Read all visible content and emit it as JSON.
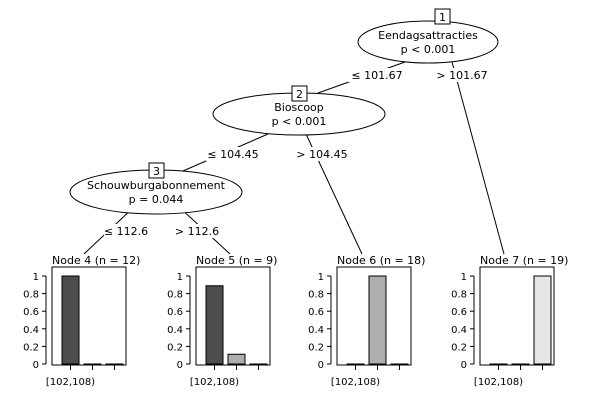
{
  "inner_nodes": [
    {
      "id": "1",
      "variable": "Eendagsattracties",
      "pvalue": "p < 0.001"
    },
    {
      "id": "2",
      "variable": "Bioscoop",
      "pvalue": "p < 0.001"
    },
    {
      "id": "3",
      "variable": "Schouwburgabonnement",
      "pvalue": "p = 0.044"
    }
  ],
  "edges": [
    {
      "from": "1",
      "to": "2",
      "label": "≤ 101.67"
    },
    {
      "from": "1",
      "to": "7",
      "label": "> 101.67"
    },
    {
      "from": "2",
      "to": "3",
      "label": "≤ 104.45"
    },
    {
      "from": "2",
      "to": "6",
      "label": "> 104.45"
    },
    {
      "from": "3",
      "to": "4",
      "label": "≤ 112.6"
    },
    {
      "from": "3",
      "to": "5",
      "label": "> 112.6"
    }
  ],
  "terminal_nodes": [
    {
      "id": "4",
      "title": "Node 4 (n = 12)",
      "values": [
        1.0,
        0.0,
        0.0
      ]
    },
    {
      "id": "5",
      "title": "Node 5 (n = 9)",
      "values": [
        0.889,
        0.111,
        0.0
      ]
    },
    {
      "id": "6",
      "title": "Node 6 (n = 18)",
      "values": [
        0.0,
        1.0,
        0.0
      ]
    },
    {
      "id": "7",
      "title": "Node 7 (n = 19)",
      "values": [
        0.0,
        0.0,
        1.0
      ]
    }
  ],
  "bar_colors": [
    "#4d4d4d",
    "#aeaeae",
    "#e6e6e6"
  ],
  "y_ticks": [
    "0",
    "0.2",
    "0.4",
    "0.6",
    "0.8",
    "1"
  ],
  "x_tick_label": "[102,108)"
}
